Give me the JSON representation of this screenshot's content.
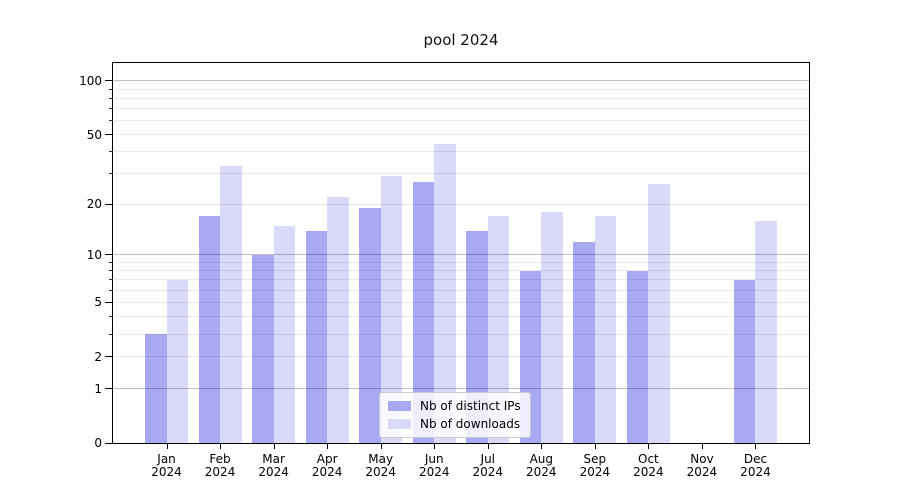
{
  "chart_data": {
    "type": "bar",
    "title": "pool 2024",
    "categories": [
      "Jan 2024",
      "Feb 2024",
      "Mar 2024",
      "Apr 2024",
      "May 2024",
      "Jun 2024",
      "Jul 2024",
      "Aug 2024",
      "Sep 2024",
      "Oct 2024",
      "Nov 2024",
      "Dec 2024"
    ],
    "series": [
      {
        "name": "Nb of distinct IPs",
        "color": "#a8a8f3",
        "values": [
          3,
          17,
          10,
          14,
          19,
          27,
          14,
          8,
          12,
          8,
          0,
          7
        ]
      },
      {
        "name": "Nb of downloads",
        "color": "#d9d9fa",
        "values": [
          7,
          33,
          15,
          22,
          29,
          44,
          17,
          18,
          17,
          26,
          0,
          16
        ]
      }
    ],
    "xlabel": "",
    "ylabel": "",
    "y_axis": {
      "scale": "log1p",
      "labeled_ticks": [
        0,
        1,
        2,
        5,
        10,
        20,
        50,
        100
      ],
      "decade_gridlines": [
        1,
        10,
        100
      ],
      "minor_gridlines": [
        2,
        3,
        4,
        5,
        6,
        7,
        8,
        9,
        20,
        30,
        40,
        50,
        60,
        70,
        80,
        90
      ],
      "ylim": [
        0,
        125
      ]
    },
    "grid": true,
    "legend_position": "lower center"
  }
}
